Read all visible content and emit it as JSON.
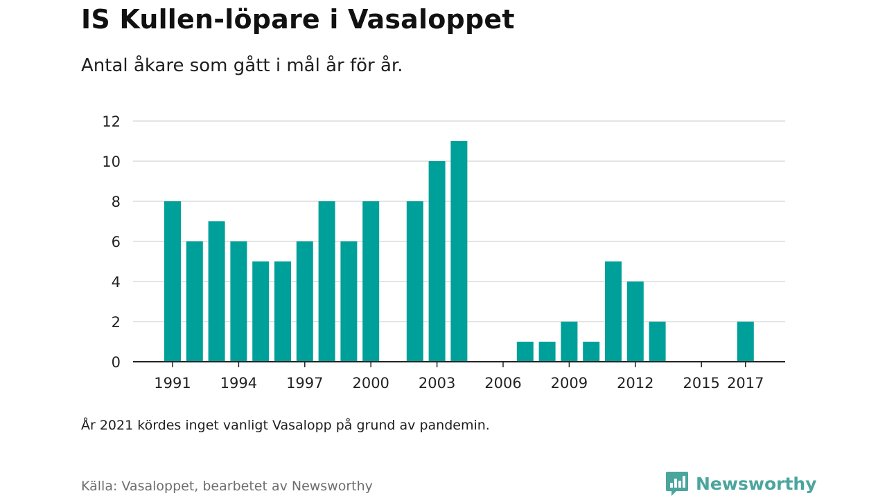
{
  "title": "IS Kullen-löpare i Vasaloppet",
  "subtitle": "Antal åkare som gått i mål år för år.",
  "note": "År 2021 kördes inget vanligt Vasalopp på grund av pandemin.",
  "source": "Källa: Vasaloppet, bearbetet av Newsworthy",
  "brand": {
    "name": "Newsworthy",
    "icon": "newsworthy-logo-icon"
  },
  "colors": {
    "bar": "#00a09a",
    "grid": "#dcdcdc",
    "axis": "#222222",
    "brand": "#4aa59d"
  },
  "chart_data": {
    "type": "bar",
    "title": "IS Kullen-löpare i Vasaloppet",
    "xlabel": "",
    "ylabel": "",
    "ylim": [
      0,
      12
    ],
    "yticks": [
      0,
      2,
      4,
      6,
      8,
      10,
      12
    ],
    "xticks": [
      "1991",
      "1994",
      "1997",
      "2000",
      "2003",
      "2006",
      "2009",
      "2012",
      "2015",
      "2017"
    ],
    "grid": true,
    "categories": [
      "1991",
      "1992",
      "1993",
      "1994",
      "1995",
      "1996",
      "1997",
      "1998",
      "1999",
      "2000",
      "2001",
      "2002",
      "2003",
      "2004",
      "2005",
      "2006",
      "2007",
      "2008",
      "2009",
      "2010",
      "2011",
      "2012",
      "2013",
      "2014",
      "2015",
      "2016",
      "2017"
    ],
    "values": [
      8,
      6,
      7,
      6,
      5,
      5,
      6,
      8,
      6,
      8,
      0,
      8,
      10,
      11,
      0,
      0,
      1,
      1,
      2,
      1,
      5,
      4,
      2,
      0,
      0,
      0,
      2
    ]
  }
}
